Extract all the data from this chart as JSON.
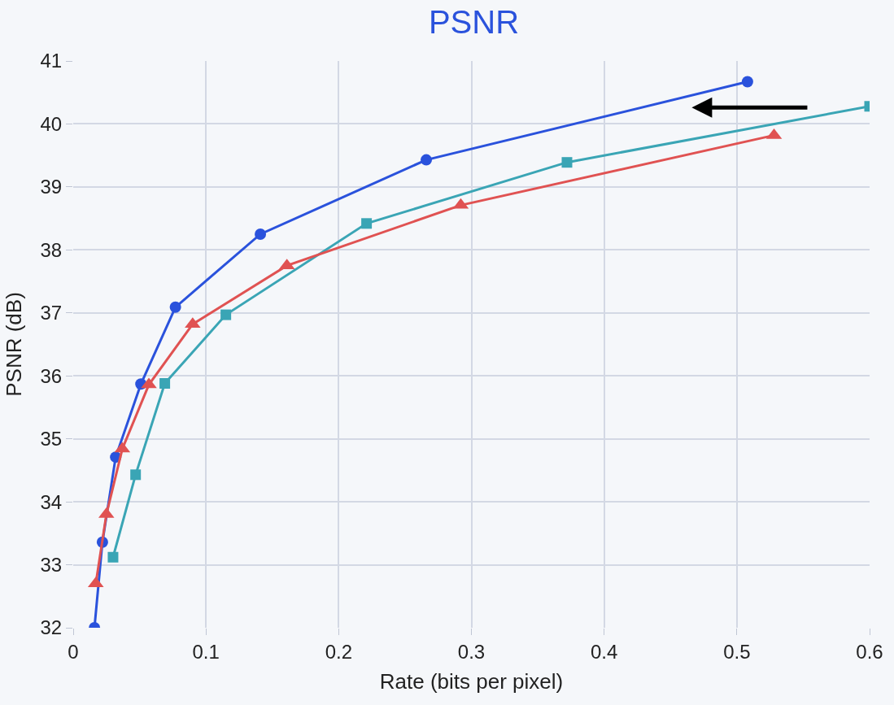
{
  "chart_data": {
    "type": "line",
    "title": "PSNR",
    "xlabel": "Rate (bits per pixel)",
    "ylabel": "PSNR (dB)",
    "xlim": [
      0,
      0.6
    ],
    "xticks": [
      0,
      0.1,
      0.2,
      0.3,
      0.4,
      0.5,
      0.6
    ],
    "ylim": [
      32,
      41
    ],
    "yticks": [
      32,
      33,
      34,
      35,
      36,
      37,
      38,
      39,
      40,
      41
    ],
    "grid": true,
    "series": [
      {
        "color": "#2a52dc",
        "marker": "circle",
        "x": [
          0.016,
          0.022,
          0.032,
          0.051,
          0.077,
          0.141,
          0.266,
          0.508
        ],
        "values": [
          32.0,
          33.36,
          34.71,
          35.87,
          37.09,
          38.25,
          39.43,
          40.67
        ]
      },
      {
        "color": "#3aa5b5",
        "marker": "square",
        "x": [
          0.03,
          0.047,
          0.069,
          0.115,
          0.221,
          0.372,
          0.6
        ],
        "values": [
          33.12,
          34.43,
          35.88,
          36.97,
          38.42,
          39.39,
          40.28
        ]
      },
      {
        "color": "#e05252",
        "marker": "triangle",
        "x": [
          0.017,
          0.025,
          0.037,
          0.057,
          0.09,
          0.161,
          0.292,
          0.528
        ],
        "values": [
          32.7,
          33.8,
          34.84,
          35.86,
          36.82,
          37.75,
          38.71,
          39.82
        ]
      }
    ]
  }
}
